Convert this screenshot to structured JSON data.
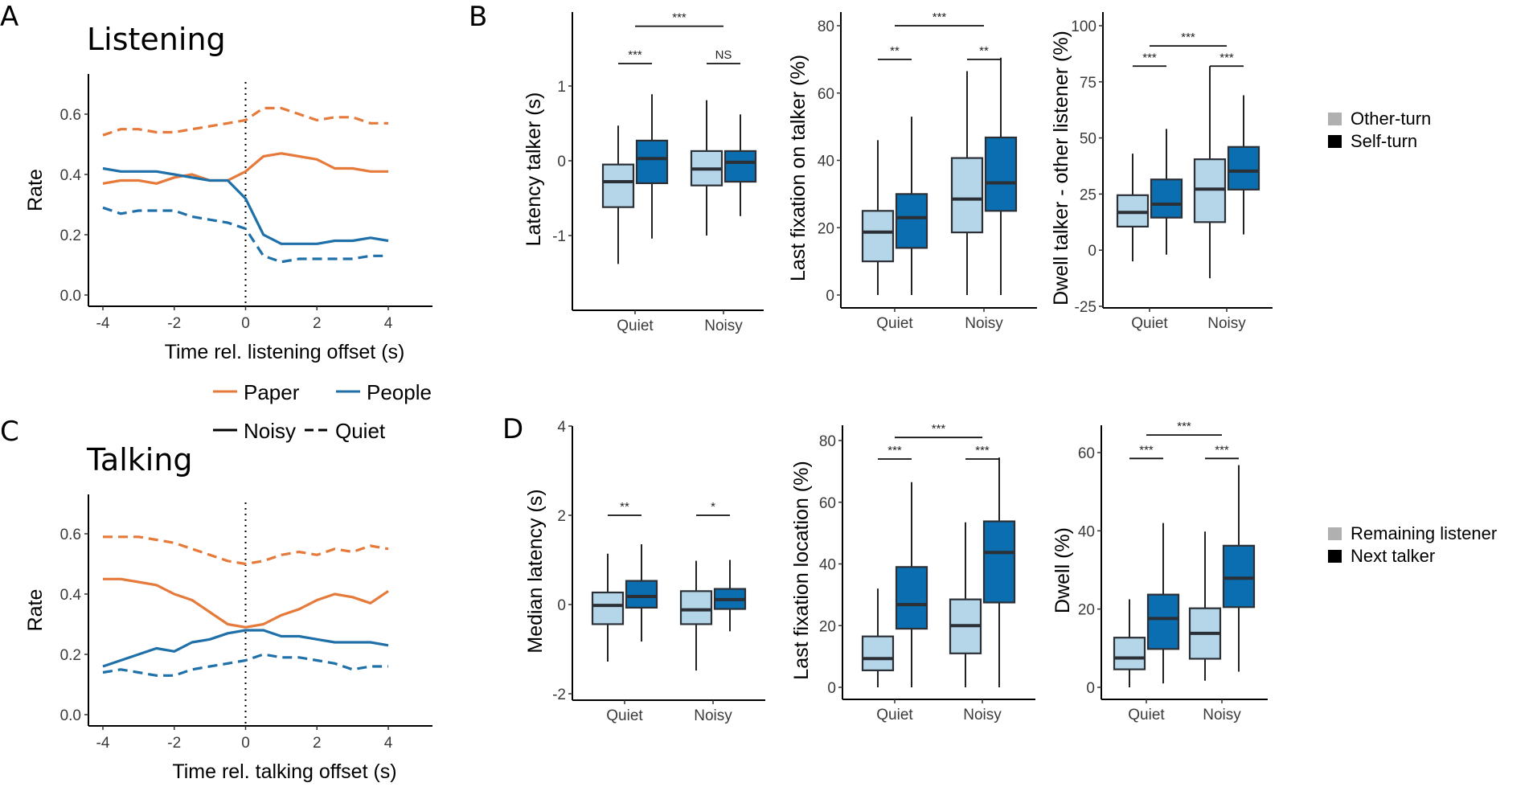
{
  "colors": {
    "paper": "#E57A3B",
    "people": "#1F6FA8",
    "light_box": "#B5D5E8",
    "dark_box": "#0A6EB0",
    "box_edge": "#2B2F36",
    "axis": "#000000",
    "legend_light": "#B0B0B0",
    "legend_dark": "#000000"
  },
  "legend_lines": {
    "color_entries": [
      {
        "label": "Paper",
        "key": "paper"
      },
      {
        "label": "People",
        "key": "people"
      }
    ],
    "style_entries": [
      {
        "label": "Noisy",
        "dash": false
      },
      {
        "label": "Quiet",
        "dash": true
      }
    ]
  },
  "legend_B": [
    {
      "label": "Other-turn",
      "key": "legend_light"
    },
    {
      "label": "Self-turn",
      "key": "legend_dark"
    }
  ],
  "legend_D": [
    {
      "label": "Remaining listener",
      "key": "legend_light"
    },
    {
      "label": "Next talker",
      "key": "legend_dark"
    }
  ],
  "chart_data": [
    {
      "id": "A",
      "panel": "A",
      "type": "line",
      "title": "Listening",
      "xlabel": "Time rel. listening offset (s)",
      "ylabel": "Rate",
      "xlim": [
        -4,
        4
      ],
      "ylim": [
        0,
        0.7
      ],
      "xticks": [
        -4,
        -2,
        0,
        2,
        4
      ],
      "yticks": [
        "0.0",
        "0.2",
        "0.4",
        "0.6"
      ],
      "ytick_values": [
        0,
        0.2,
        0.4,
        0.6
      ],
      "vline_x": 0,
      "x": [
        -4,
        -3.5,
        -3,
        -2.5,
        -2,
        -1.5,
        -1,
        -0.5,
        0,
        0.5,
        1,
        1.5,
        2,
        2.5,
        3,
        3.5,
        4
      ],
      "series": [
        {
          "name": "Paper Quiet",
          "color": "paper",
          "dash": true,
          "values": [
            0.53,
            0.55,
            0.55,
            0.54,
            0.54,
            0.55,
            0.56,
            0.57,
            0.58,
            0.62,
            0.62,
            0.6,
            0.58,
            0.59,
            0.59,
            0.57,
            0.57
          ]
        },
        {
          "name": "Paper Noisy",
          "color": "paper",
          "dash": false,
          "values": [
            0.37,
            0.38,
            0.38,
            0.37,
            0.39,
            0.4,
            0.38,
            0.38,
            0.41,
            0.46,
            0.47,
            0.46,
            0.45,
            0.42,
            0.42,
            0.41,
            0.41
          ]
        },
        {
          "name": "People Noisy",
          "color": "people",
          "dash": false,
          "values": [
            0.42,
            0.41,
            0.41,
            0.41,
            0.4,
            0.39,
            0.38,
            0.38,
            0.32,
            0.2,
            0.17,
            0.17,
            0.17,
            0.18,
            0.18,
            0.19,
            0.18
          ]
        },
        {
          "name": "People Quiet",
          "color": "people",
          "dash": true,
          "values": [
            0.29,
            0.27,
            0.28,
            0.28,
            0.28,
            0.26,
            0.25,
            0.24,
            0.22,
            0.13,
            0.11,
            0.12,
            0.12,
            0.12,
            0.12,
            0.13,
            0.13
          ]
        }
      ]
    },
    {
      "id": "C",
      "panel": "C",
      "type": "line",
      "title": "Talking",
      "xlabel": "Time rel. talking offset (s)",
      "ylabel": "Rate",
      "xlim": [
        -4,
        4
      ],
      "ylim": [
        0,
        0.7
      ],
      "xticks": [
        -4,
        -2,
        0,
        2,
        4
      ],
      "yticks": [
        "0.0",
        "0.2",
        "0.4",
        "0.6"
      ],
      "ytick_values": [
        0,
        0.2,
        0.4,
        0.6
      ],
      "vline_x": 0,
      "x": [
        -4,
        -3.5,
        -3,
        -2.5,
        -2,
        -1.5,
        -1,
        -0.5,
        0,
        0.5,
        1,
        1.5,
        2,
        2.5,
        3,
        3.5,
        4
      ],
      "series": [
        {
          "name": "Paper Quiet",
          "color": "paper",
          "dash": true,
          "values": [
            0.59,
            0.59,
            0.59,
            0.58,
            0.57,
            0.55,
            0.53,
            0.51,
            0.5,
            0.51,
            0.53,
            0.54,
            0.53,
            0.55,
            0.54,
            0.56,
            0.55
          ]
        },
        {
          "name": "Paper Noisy",
          "color": "paper",
          "dash": false,
          "values": [
            0.45,
            0.45,
            0.44,
            0.43,
            0.4,
            0.38,
            0.34,
            0.3,
            0.29,
            0.3,
            0.33,
            0.35,
            0.38,
            0.4,
            0.39,
            0.37,
            0.41
          ]
        },
        {
          "name": "People Noisy",
          "color": "people",
          "dash": false,
          "values": [
            0.16,
            0.18,
            0.2,
            0.22,
            0.21,
            0.24,
            0.25,
            0.27,
            0.28,
            0.28,
            0.26,
            0.26,
            0.25,
            0.24,
            0.24,
            0.24,
            0.23
          ]
        },
        {
          "name": "People Quiet",
          "color": "people",
          "dash": true,
          "values": [
            0.14,
            0.15,
            0.14,
            0.13,
            0.13,
            0.15,
            0.16,
            0.17,
            0.18,
            0.2,
            0.19,
            0.19,
            0.18,
            0.17,
            0.15,
            0.16,
            0.16
          ]
        }
      ]
    },
    {
      "id": "B1",
      "panel": "B",
      "type": "box",
      "ylabel": "Latency talker (s)",
      "ylim": [
        -1.95,
        1.95
      ],
      "yticks": [
        "-1",
        "0",
        "1"
      ],
      "ytick_values": [
        -1,
        0,
        1
      ],
      "categories": [
        "Quiet",
        "Noisy"
      ],
      "boxes": [
        {
          "category": "Quiet",
          "group": "Other-turn",
          "whisker_low": -1.38,
          "q1": -0.62,
          "median": -0.28,
          "q3": -0.05,
          "whisker_high": 0.47
        },
        {
          "category": "Quiet",
          "group": "Self-turn",
          "whisker_low": -1.04,
          "q1": -0.3,
          "median": 0.03,
          "q3": 0.27,
          "whisker_high": 0.89
        },
        {
          "category": "Noisy",
          "group": "Other-turn",
          "whisker_low": -1.0,
          "q1": -0.33,
          "median": -0.11,
          "q3": 0.13,
          "whisker_high": 0.81
        },
        {
          "category": "Noisy",
          "group": "Self-turn",
          "whisker_low": -0.74,
          "q1": -0.28,
          "median": -0.02,
          "q3": 0.13,
          "whisker_high": 0.62
        }
      ],
      "annotations": [
        {
          "label": "***",
          "from": "Quiet",
          "to": "Noisy",
          "span": "between",
          "y": 1.8
        },
        {
          "label": "***",
          "from": "Quiet",
          "span": "within",
          "y": 1.3
        },
        {
          "label": "NS",
          "from": "Noisy",
          "span": "within",
          "y": 1.3
        }
      ]
    },
    {
      "id": "B2",
      "panel": "B",
      "type": "box",
      "ylabel": "Last fixation on talker (%)",
      "ylim": [
        -3,
        84
      ],
      "yticks": [
        "0",
        "20",
        "40",
        "60",
        "80"
      ],
      "ytick_values": [
        0,
        20,
        40,
        60,
        80
      ],
      "categories": [
        "Quiet",
        "Noisy"
      ],
      "boxes": [
        {
          "category": "Quiet",
          "group": "Other-turn",
          "whisker_low": 0,
          "q1": 10,
          "median": 18.7,
          "q3": 25,
          "whisker_high": 46
        },
        {
          "category": "Quiet",
          "group": "Self-turn",
          "whisker_low": 0,
          "q1": 14,
          "median": 23,
          "q3": 30,
          "whisker_high": 53
        },
        {
          "category": "Noisy",
          "group": "Other-turn",
          "whisker_low": 0,
          "q1": 18.6,
          "median": 28.5,
          "q3": 40.7,
          "whisker_high": 66.5
        },
        {
          "category": "Noisy",
          "group": "Self-turn",
          "whisker_low": 0,
          "q1": 25,
          "median": 33.3,
          "q3": 46.8,
          "whisker_high": 70.5
        }
      ],
      "annotations": [
        {
          "label": "***",
          "from": "Quiet",
          "to": "Noisy",
          "span": "between",
          "y": 80
        },
        {
          "label": "**",
          "from": "Quiet",
          "span": "within",
          "y": 70
        },
        {
          "label": "**",
          "from": "Noisy",
          "span": "within",
          "y": 70
        }
      ]
    },
    {
      "id": "B3",
      "panel": "B",
      "type": "box",
      "ylabel": "Dwell talker - other listener (%)",
      "ylim": [
        -27,
        106
      ],
      "yticks": [
        "-25",
        "0",
        "25",
        "50",
        "75",
        "100"
      ],
      "ytick_values": [
        -25,
        0,
        25,
        50,
        75,
        100
      ],
      "categories": [
        "Quiet",
        "Noisy"
      ],
      "boxes": [
        {
          "category": "Quiet",
          "group": "Other-turn",
          "whisker_low": -5,
          "q1": 10.5,
          "median": 16.8,
          "q3": 24.5,
          "whisker_high": 43
        },
        {
          "category": "Quiet",
          "group": "Self-turn",
          "whisker_low": -2,
          "q1": 14.5,
          "median": 20.5,
          "q3": 31.5,
          "whisker_high": 54
        },
        {
          "category": "Noisy",
          "group": "Other-turn",
          "whisker_low": -12.5,
          "q1": 12.5,
          "median": 27.2,
          "q3": 40.5,
          "whisker_high": 82
        },
        {
          "category": "Noisy",
          "group": "Self-turn",
          "whisker_low": 7,
          "q1": 27,
          "median": 35.2,
          "q3": 46,
          "whisker_high": 69
        }
      ],
      "annotations": [
        {
          "label": "***",
          "from": "Quiet",
          "to": "Noisy",
          "span": "between",
          "y": 91
        },
        {
          "label": "***",
          "from": "Quiet",
          "span": "within",
          "y": 82
        },
        {
          "label": "***",
          "from": "Noisy",
          "span": "within",
          "y": 82
        }
      ]
    },
    {
      "id": "D1",
      "panel": "D",
      "type": "box",
      "ylabel": "Median latency (s)",
      "ylim": [
        -2.1,
        4
      ],
      "yticks": [
        "-2",
        "0",
        "2",
        "4"
      ],
      "ytick_values": [
        -2,
        0,
        2,
        4
      ],
      "categories": [
        "Quiet",
        "Noisy"
      ],
      "boxes": [
        {
          "category": "Quiet",
          "group": "Remaining listener",
          "whisker_low": -1.28,
          "q1": -0.44,
          "median": -0.02,
          "q3": 0.27,
          "whisker_high": 1.14
        },
        {
          "category": "Quiet",
          "group": "Next talker",
          "whisker_low": -0.83,
          "q1": -0.07,
          "median": 0.18,
          "q3": 0.53,
          "whisker_high": 1.35
        },
        {
          "category": "Noisy",
          "group": "Remaining listener",
          "whisker_low": -1.48,
          "q1": -0.44,
          "median": -0.12,
          "q3": 0.3,
          "whisker_high": 0.98
        },
        {
          "category": "Noisy",
          "group": "Next talker",
          "whisker_low": -0.6,
          "q1": -0.1,
          "median": 0.11,
          "q3": 0.35,
          "whisker_high": 1.0
        }
      ],
      "annotations": [
        {
          "label": "**",
          "from": "Quiet",
          "span": "within",
          "y": 2.0
        },
        {
          "label": "*",
          "from": "Noisy",
          "span": "within",
          "y": 2.0
        }
      ]
    },
    {
      "id": "D2",
      "panel": "D",
      "type": "box",
      "ylabel": "Last fixation location (%)",
      "ylim": [
        -3.5,
        85
      ],
      "yticks": [
        "0",
        "20",
        "40",
        "60",
        "80"
      ],
      "ytick_values": [
        0,
        20,
        40,
        60,
        80
      ],
      "categories": [
        "Quiet",
        "Noisy"
      ],
      "boxes": [
        {
          "category": "Quiet",
          "group": "Remaining listener",
          "whisker_low": 0,
          "q1": 5.5,
          "median": 9.3,
          "q3": 16.5,
          "whisker_high": 32
        },
        {
          "category": "Quiet",
          "group": "Next talker",
          "whisker_low": 0,
          "q1": 19,
          "median": 26.8,
          "q3": 39,
          "whisker_high": 66.5
        },
        {
          "category": "Noisy",
          "group": "Remaining listener",
          "whisker_low": 0,
          "q1": 11,
          "median": 20,
          "q3": 28.5,
          "whisker_high": 53.5
        },
        {
          "category": "Noisy",
          "group": "Next talker",
          "whisker_low": 0,
          "q1": 27.5,
          "median": 43.7,
          "q3": 53.8,
          "whisker_high": 74.5
        }
      ],
      "annotations": [
        {
          "label": "***",
          "from": "Quiet",
          "to": "Noisy",
          "span": "between",
          "y": 81
        },
        {
          "label": "***",
          "from": "Quiet",
          "span": "within",
          "y": 74
        },
        {
          "label": "***",
          "from": "Noisy",
          "span": "within",
          "y": 74
        }
      ]
    },
    {
      "id": "D3",
      "panel": "D",
      "type": "box",
      "ylabel": "Dwell (%)",
      "ylim": [
        -3,
        67
      ],
      "yticks": [
        "0",
        "20",
        "40",
        "60"
      ],
      "ytick_values": [
        0,
        20,
        40,
        60
      ],
      "categories": [
        "Quiet",
        "Noisy"
      ],
      "boxes": [
        {
          "category": "Quiet",
          "group": "Remaining listener",
          "whisker_low": 0,
          "q1": 4.6,
          "median": 7.5,
          "q3": 12.7,
          "whisker_high": 22.5
        },
        {
          "category": "Quiet",
          "group": "Next talker",
          "whisker_low": 1,
          "q1": 9.8,
          "median": 17.6,
          "q3": 23.7,
          "whisker_high": 42
        },
        {
          "category": "Noisy",
          "group": "Remaining listener",
          "whisker_low": 1.7,
          "q1": 7.3,
          "median": 13.8,
          "q3": 20.2,
          "whisker_high": 39.8
        },
        {
          "category": "Noisy",
          "group": "Next talker",
          "whisker_low": 4,
          "q1": 20.5,
          "median": 27.9,
          "q3": 36.2,
          "whisker_high": 56.8
        }
      ],
      "annotations": [
        {
          "label": "***",
          "from": "Quiet",
          "to": "Noisy",
          "span": "between",
          "y": 64.5
        },
        {
          "label": "***",
          "from": "Quiet",
          "span": "within",
          "y": 58.5
        },
        {
          "label": "***",
          "from": "Noisy",
          "span": "within",
          "y": 58.5
        }
      ]
    }
  ]
}
